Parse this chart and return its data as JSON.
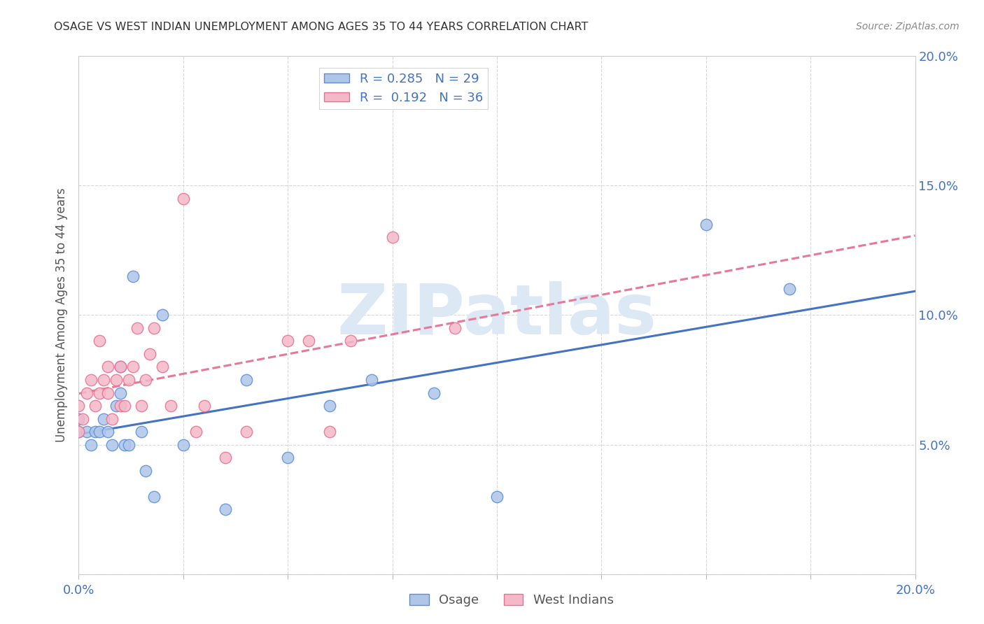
{
  "title": "OSAGE VS WEST INDIAN UNEMPLOYMENT AMONG AGES 35 TO 44 YEARS CORRELATION CHART",
  "source": "Source: ZipAtlas.com",
  "ylabel": "Unemployment Among Ages 35 to 44 years",
  "xlim": [
    0.0,
    0.2
  ],
  "ylim": [
    0.0,
    0.2
  ],
  "xticks": [
    0.0,
    0.025,
    0.05,
    0.075,
    0.1,
    0.125,
    0.15,
    0.175,
    0.2
  ],
  "yticks": [
    0.0,
    0.05,
    0.1,
    0.15,
    0.2
  ],
  "background_color": "#ffffff",
  "grid_color": "#d8d8d8",
  "osage_color": "#aec6e8",
  "west_indian_color": "#f4b8c8",
  "osage_edge_color": "#5b8ed6",
  "west_indian_edge_color": "#e87090",
  "osage_line_color": "#4472c4",
  "west_indian_line_color": "#e87898",
  "tick_color": "#4472c4",
  "title_color": "#333333",
  "source_color": "#888888",
  "ylabel_color": "#555555",
  "R_osage": 0.285,
  "N_osage": 29,
  "R_west_indian": 0.192,
  "N_west_indian": 36,
  "legend_label_osage": "Osage",
  "legend_label_west_indian": "West Indians",
  "watermark_text": "ZIPatlas",
  "watermark_color": "#dde8f5",
  "osage_x": [
    0.0,
    0.0,
    0.002,
    0.003,
    0.004,
    0.005,
    0.006,
    0.007,
    0.008,
    0.009,
    0.01,
    0.01,
    0.011,
    0.012,
    0.013,
    0.015,
    0.016,
    0.018,
    0.02,
    0.025,
    0.035,
    0.04,
    0.05,
    0.06,
    0.07,
    0.085,
    0.1,
    0.15,
    0.17
  ],
  "osage_y": [
    0.055,
    0.06,
    0.055,
    0.05,
    0.055,
    0.055,
    0.06,
    0.055,
    0.05,
    0.065,
    0.07,
    0.08,
    0.05,
    0.05,
    0.115,
    0.055,
    0.04,
    0.03,
    0.1,
    0.05,
    0.025,
    0.075,
    0.045,
    0.065,
    0.075,
    0.07,
    0.03,
    0.135,
    0.11
  ],
  "west_indian_x": [
    0.0,
    0.0,
    0.001,
    0.002,
    0.003,
    0.004,
    0.005,
    0.005,
    0.006,
    0.007,
    0.007,
    0.008,
    0.009,
    0.01,
    0.01,
    0.011,
    0.012,
    0.013,
    0.014,
    0.015,
    0.016,
    0.017,
    0.018,
    0.02,
    0.022,
    0.025,
    0.028,
    0.03,
    0.035,
    0.04,
    0.05,
    0.055,
    0.06,
    0.065,
    0.075,
    0.09
  ],
  "west_indian_y": [
    0.055,
    0.065,
    0.06,
    0.07,
    0.075,
    0.065,
    0.07,
    0.09,
    0.075,
    0.07,
    0.08,
    0.06,
    0.075,
    0.065,
    0.08,
    0.065,
    0.075,
    0.08,
    0.095,
    0.065,
    0.075,
    0.085,
    0.095,
    0.08,
    0.065,
    0.145,
    0.055,
    0.065,
    0.045,
    0.055,
    0.09,
    0.09,
    0.055,
    0.09,
    0.13,
    0.095
  ]
}
